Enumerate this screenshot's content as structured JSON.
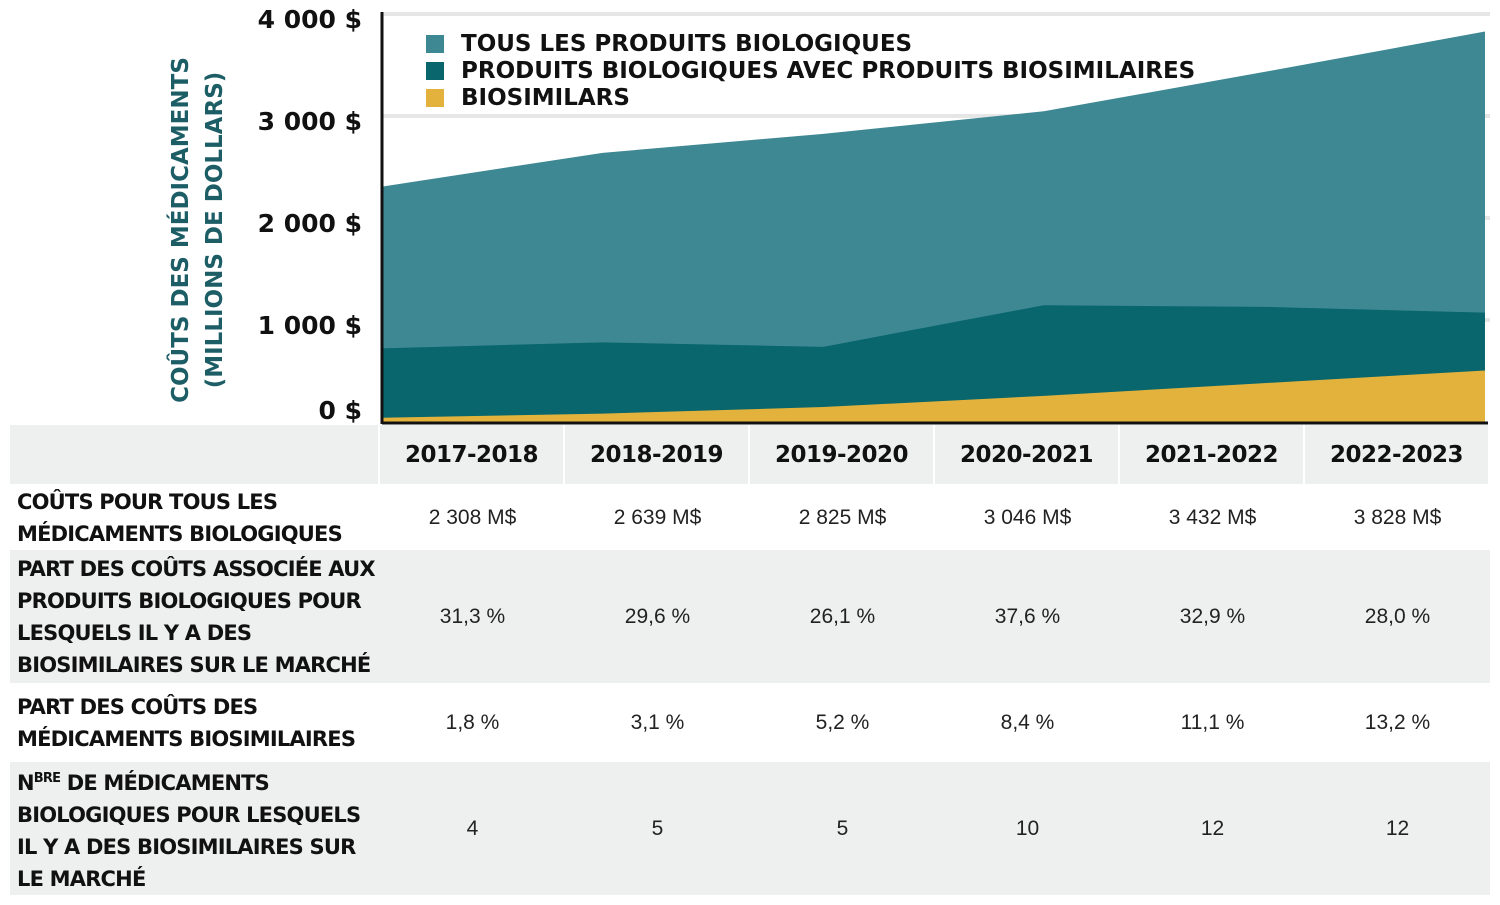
{
  "chart_data": {
    "type": "area",
    "ylabel": [
      "COÛTS DES MÉDICAMENTS",
      "(MILLIONS DE DOLLARS)"
    ],
    "ylim": [
      0,
      4000
    ],
    "yticks": [
      "0 $",
      "1 000 $",
      "2 000 $",
      "3 000 $",
      "4 000 $"
    ],
    "categories": [
      "2017-2018",
      "2018-2019",
      "2019-2020",
      "2020-2021",
      "2021-2022",
      "2022-2023"
    ],
    "legend_position": "top-left",
    "series": [
      {
        "name": "TOUS LES PRODUITS BIOLOGIQUES",
        "color": "#3e8894",
        "values": [
          2308,
          2639,
          2825,
          3046,
          3432,
          3828
        ]
      },
      {
        "name": "PRODUITS BIOLOGIQUES AVEC PRODUITS BIOSIMILAIRES",
        "color": "#08666c",
        "values": [
          722,
          781,
          737,
          1145,
          1129,
          1072
        ]
      },
      {
        "name": "BIOSIMILARS",
        "color": "#e3b23c",
        "values": [
          42,
          82,
          147,
          256,
          381,
          505
        ]
      }
    ]
  },
  "table": {
    "headers": [
      "2017-2018",
      "2018-2019",
      "2019-2020",
      "2020-2021",
      "2021-2022",
      "2022-2023"
    ],
    "rows": [
      {
        "label": "COÛTS POUR TOUS LES MÉDICAMENTS BIOLOGIQUES",
        "values": [
          "2 308 M$",
          "2 639 M$",
          "2 825 M$",
          "3 046 M$",
          "3 432 M$",
          "3 828 M$"
        ]
      },
      {
        "label": "PART DES COÛTS ASSOCIÉE AUX PRODUITS BIOLOGIQUES POUR LESQUELS IL Y A DES BIOSIMILAIRES SUR LE MARCHÉ",
        "values": [
          "31,3 %",
          "29,6 %",
          "26,1 %",
          "37,6 %",
          "32,9 %",
          "28,0 %"
        ]
      },
      {
        "label": "PART DES COÛTS DES MÉDICAMENTS BIOSIMILAIRES",
        "values": [
          "1,8 %",
          "3,1 %",
          "5,2 %",
          "8,4 %",
          "11,1 %",
          "13,2 %"
        ]
      },
      {
        "label_prefix": "N",
        "label_sup": "BRE",
        "label": " DE MÉDICAMENTS BIOLOGIQUES POUR LESQUELS IL Y A DES BIOSIMILAIRES SUR LE MARCHÉ",
        "values": [
          "4",
          "5",
          "5",
          "10",
          "12",
          "12"
        ]
      }
    ]
  }
}
